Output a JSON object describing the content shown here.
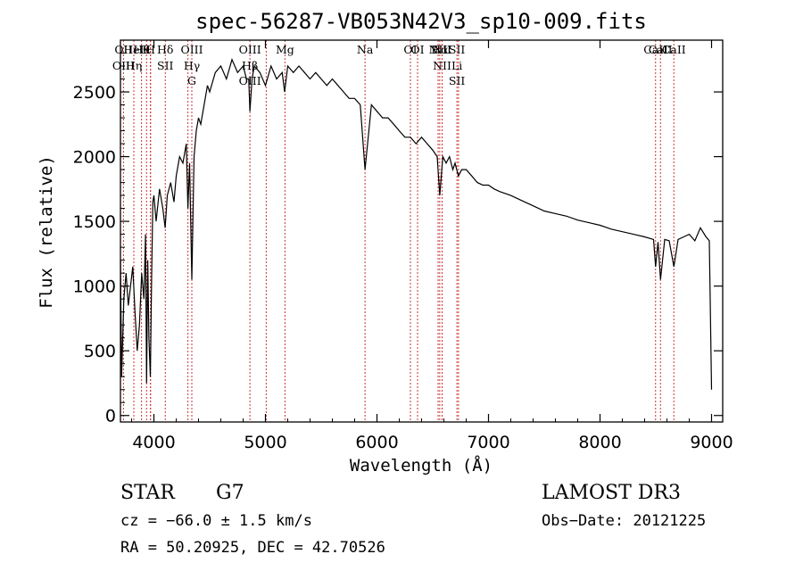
{
  "chart_data": {
    "type": "line",
    "title": "spec-56287-VB053N42V3_sp10-009.fits",
    "xlabel": "Wavelength (Å)",
    "ylabel": "Flux (relative)",
    "xlim": [
      3700,
      9100
    ],
    "ylim": [
      -50,
      2900
    ],
    "xticks": [
      4000,
      5000,
      6000,
      7000,
      8000,
      9000
    ],
    "yticks": [
      0,
      500,
      1000,
      1500,
      2000,
      2500
    ],
    "series": [
      {
        "name": "flux",
        "x": [
          3700,
          3710,
          3730,
          3750,
          3770,
          3790,
          3810,
          3830,
          3850,
          3870,
          3890,
          3910,
          3925,
          3934,
          3945,
          3955,
          3968,
          3980,
          3990,
          4000,
          4020,
          4050,
          4080,
          4101,
          4120,
          4150,
          4180,
          4200,
          4230,
          4260,
          4290,
          4305,
          4320,
          4340,
          4360,
          4380,
          4400,
          4420,
          4450,
          4480,
          4500,
          4550,
          4600,
          4650,
          4700,
          4750,
          4800,
          4830,
          4850,
          4861,
          4880,
          4900,
          4950,
          5000,
          5050,
          5100,
          5150,
          5172,
          5200,
          5250,
          5300,
          5350,
          5400,
          5450,
          5500,
          5550,
          5600,
          5650,
          5700,
          5750,
          5800,
          5850,
          5893,
          5950,
          6000,
          6050,
          6100,
          6150,
          6200,
          6250,
          6300,
          6350,
          6400,
          6450,
          6500,
          6540,
          6563,
          6590,
          6620,
          6650,
          6680,
          6700,
          6730,
          6760,
          6800,
          6850,
          6900,
          6950,
          7000,
          7050,
          7100,
          7200,
          7300,
          7400,
          7500,
          7600,
          7700,
          7800,
          7900,
          8000,
          8100,
          8200,
          8300,
          8400,
          8480,
          8498,
          8520,
          8542,
          8580,
          8620,
          8662,
          8700,
          8750,
          8800,
          8850,
          8900,
          8950,
          8980,
          9000
        ],
        "y": [
          1200,
          300,
          900,
          1100,
          850,
          1000,
          1150,
          800,
          500,
          700,
          1100,
          900,
          1400,
          250,
          1200,
          600,
          300,
          1100,
          1650,
          1700,
          1500,
          1750,
          1600,
          1450,
          1700,
          1800,
          1650,
          1850,
          2000,
          1950,
          2100,
          1600,
          1950,
          1050,
          2000,
          2200,
          2300,
          2250,
          2400,
          2550,
          2500,
          2650,
          2700,
          2600,
          2750,
          2650,
          2700,
          2600,
          2600,
          2350,
          2600,
          2700,
          2650,
          2550,
          2700,
          2600,
          2650,
          2500,
          2700,
          2650,
          2700,
          2650,
          2600,
          2650,
          2600,
          2550,
          2600,
          2550,
          2500,
          2450,
          2450,
          2400,
          1900,
          2400,
          2350,
          2300,
          2300,
          2250,
          2200,
          2150,
          2150,
          2100,
          2150,
          2100,
          2050,
          2000,
          1700,
          2000,
          1950,
          2000,
          1900,
          1950,
          1850,
          1900,
          1900,
          1850,
          1800,
          1780,
          1780,
          1750,
          1730,
          1700,
          1660,
          1620,
          1580,
          1560,
          1540,
          1510,
          1490,
          1470,
          1440,
          1420,
          1400,
          1380,
          1360,
          1150,
          1340,
          1050,
          1360,
          1350,
          1150,
          1360,
          1380,
          1400,
          1350,
          1450,
          1380,
          1350,
          200
        ]
      }
    ],
    "lines": [
      {
        "name": "CaII",
        "wavelength": 3934,
        "labels": [
          "K"
        ]
      },
      {
        "name": "CaII",
        "wavelength": 3969,
        "labels": [
          "H"
        ]
      },
      {
        "name": "Hε",
        "wavelength": 3970,
        "labels": []
      },
      {
        "name": "H8",
        "wavelength": 3889,
        "labels": [
          "Hθ"
        ]
      },
      {
        "name": "OII",
        "wavelength": 3727,
        "labels": [
          "OII",
          "OIII"
        ]
      },
      {
        "name": "HeI",
        "wavelength": 3820,
        "labels": [
          "HeI",
          "Hη"
        ]
      },
      {
        "name": "Hδ",
        "wavelength": 4102,
        "labels": [
          "Hδ",
          "SII"
        ]
      },
      {
        "name": "Hγ",
        "wavelength": 4340,
        "labels": [
          "OIII",
          "Hγ",
          "G"
        ]
      },
      {
        "name": "G",
        "wavelength": 4305,
        "labels": []
      },
      {
        "name": "Hβ",
        "wavelength": 4861,
        "labels": [
          "OIII",
          "Hβ",
          "OIII"
        ]
      },
      {
        "name": "OIII",
        "wavelength": 5007,
        "labels": []
      },
      {
        "name": "Mg",
        "wavelength": 5175,
        "labels": [
          "Mg"
        ]
      },
      {
        "name": "Na",
        "wavelength": 5893,
        "labels": [
          "Na"
        ]
      },
      {
        "name": "OI",
        "wavelength": 6300,
        "labels": [
          "OI"
        ]
      },
      {
        "name": "OI",
        "wavelength": 6364,
        "labels": [
          "OI"
        ]
      },
      {
        "name": "NII",
        "wavelength": 6548,
        "labels": [
          "NII"
        ]
      },
      {
        "name": "Hα",
        "wavelength": 6563,
        "labels": [
          "Hα"
        ]
      },
      {
        "name": "NII",
        "wavelength": 6584,
        "labels": [
          "NII",
          "NII"
        ]
      },
      {
        "name": "SII",
        "wavelength": 6717,
        "labels": [
          "SII",
          "Li",
          "SII"
        ]
      },
      {
        "name": "SII",
        "wavelength": 6731,
        "labels": []
      },
      {
        "name": "CaII",
        "wavelength": 8498,
        "labels": [
          "CaII"
        ]
      },
      {
        "name": "CaII",
        "wavelength": 8542,
        "labels": [
          "CaII"
        ]
      },
      {
        "name": "CaII",
        "wavelength": 8662,
        "labels": [
          "CaII"
        ]
      }
    ],
    "line_color": "#cc3333"
  },
  "info": {
    "object_class": "STAR",
    "subclass": "G7",
    "survey": "LAMOST DR3",
    "redshift": "cz = −66.0 ± 1.5 km/s",
    "obs_date": "Obs−Date: 20121225",
    "coords": "RA =  50.20925, DEC =  42.70526"
  }
}
